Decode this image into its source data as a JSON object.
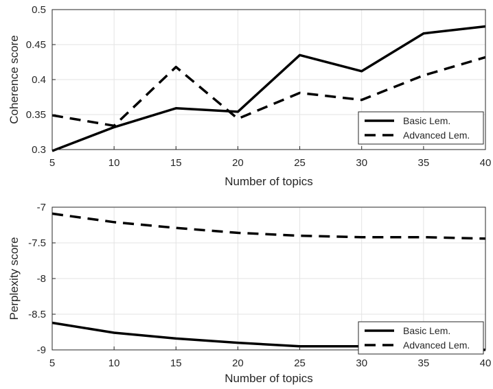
{
  "chart_data": [
    {
      "type": "line",
      "x": [
        5,
        10,
        15,
        20,
        25,
        30,
        35,
        40
      ],
      "xlabel": "Number of topics",
      "ylabel": "Coherence score",
      "xlim": [
        5,
        40
      ],
      "ylim": [
        0.3,
        0.5
      ],
      "xticks": [
        "5",
        "10",
        "15",
        "20",
        "25",
        "30",
        "35",
        "40"
      ],
      "yticks": [
        "0.3",
        "0.35",
        "0.4",
        "0.45",
        "0.5"
      ],
      "grid": true,
      "legend_position": "bottom-right",
      "series": [
        {
          "name": "Basic Lem.",
          "style": "solid",
          "values": [
            0.298,
            0.332,
            0.359,
            0.354,
            0.435,
            0.412,
            0.466,
            0.476
          ]
        },
        {
          "name": "Advanced Lem.",
          "style": "dashed",
          "values": [
            0.349,
            0.334,
            0.418,
            0.344,
            0.381,
            0.371,
            0.406,
            0.432
          ]
        }
      ]
    },
    {
      "type": "line",
      "x": [
        5,
        10,
        15,
        20,
        25,
        30,
        35,
        40
      ],
      "xlabel": "Number of topics",
      "ylabel": "Perplexity score",
      "xlim": [
        5,
        40
      ],
      "ylim": [
        -9,
        -7
      ],
      "xticks": [
        "5",
        "10",
        "15",
        "20",
        "25",
        "30",
        "35",
        "40"
      ],
      "yticks": [
        "-9",
        "-8.5",
        "-8",
        "-7.5",
        "-7"
      ],
      "grid": true,
      "legend_position": "bottom-right",
      "series": [
        {
          "name": "Basic Lem.",
          "style": "solid",
          "values": [
            -8.62,
            -8.76,
            -8.84,
            -8.9,
            -8.95,
            -8.95,
            -8.96,
            -9.0
          ]
        },
        {
          "name": "Advanced Lem.",
          "style": "dashed",
          "values": [
            -7.09,
            -7.21,
            -7.29,
            -7.36,
            -7.4,
            -7.42,
            -7.42,
            -7.44
          ]
        }
      ]
    }
  ]
}
